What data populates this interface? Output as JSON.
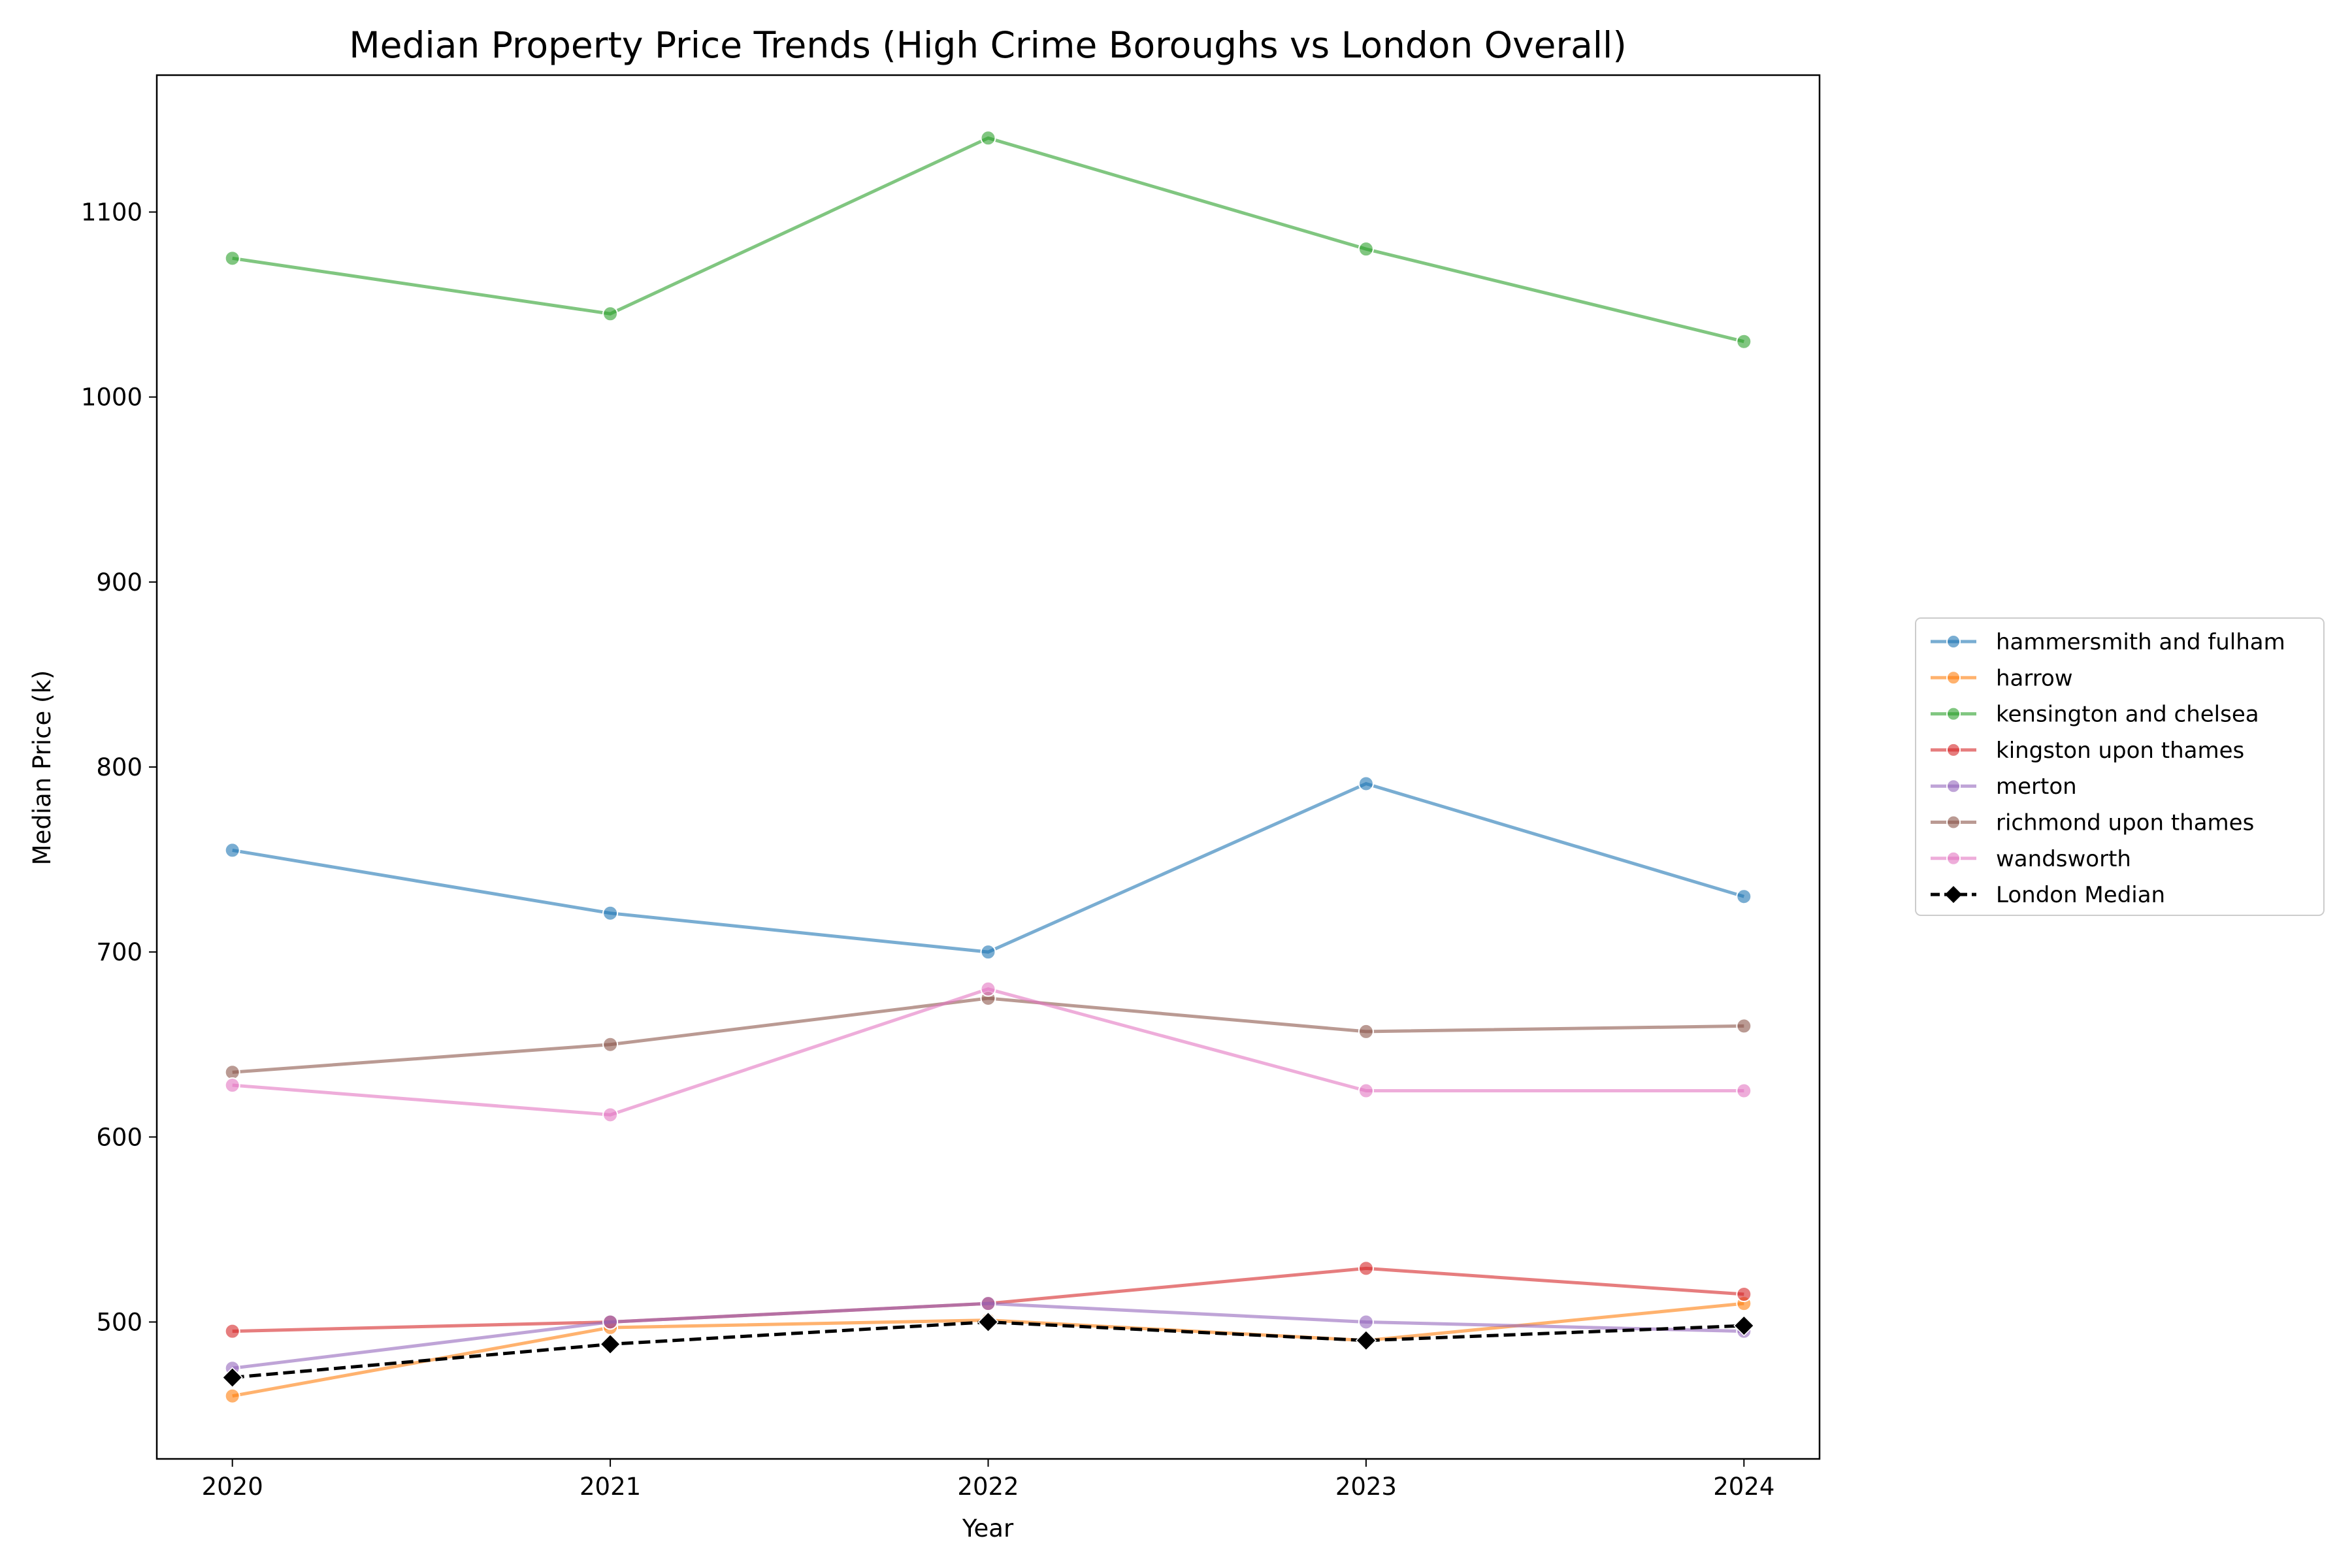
{
  "chart_data": {
    "type": "line",
    "title": "Median Property Price Trends (High Crime Boroughs vs London Overall)",
    "xlabel": "Year",
    "ylabel": "Median Price (k)",
    "x": [
      "2020",
      "2021",
      "2022",
      "2023",
      "2024"
    ],
    "xlim": [
      2019.8,
      2024.2
    ],
    "ylim": [
      426,
      1174
    ],
    "yticks": [
      500,
      600,
      700,
      800,
      900,
      1000,
      1100
    ],
    "grid": false,
    "legend_position": "outside right",
    "series": [
      {
        "name": "hammersmith and fulham",
        "color": "#1f77b4",
        "values": [
          755,
          721,
          700,
          791,
          730
        ],
        "marker": "circle",
        "dashed": false
      },
      {
        "name": "harrow",
        "color": "#ff7f0e",
        "values": [
          460,
          497,
          501,
          490,
          510
        ],
        "marker": "circle",
        "dashed": false
      },
      {
        "name": "kensington and chelsea",
        "color": "#2ca02c",
        "values": [
          1075,
          1045,
          1140,
          1080,
          1030
        ],
        "marker": "circle",
        "dashed": false
      },
      {
        "name": "kingston upon thames",
        "color": "#d62728",
        "values": [
          495,
          500,
          510,
          529,
          515
        ],
        "marker": "circle",
        "dashed": false
      },
      {
        "name": "merton",
        "color": "#9467bd",
        "values": [
          475,
          500,
          510,
          500,
          495
        ],
        "marker": "circle",
        "dashed": false
      },
      {
        "name": "richmond upon thames",
        "color": "#8c564b",
        "values": [
          635,
          650,
          675,
          657,
          660
        ],
        "marker": "circle",
        "dashed": false
      },
      {
        "name": "wandsworth",
        "color": "#e377c2",
        "values": [
          628,
          612,
          680,
          625,
          625
        ],
        "marker": "circle",
        "dashed": false
      },
      {
        "name": "London Median",
        "color": "#000000",
        "values": [
          470,
          488,
          500,
          490,
          498
        ],
        "marker": "diamond",
        "dashed": true
      }
    ]
  }
}
